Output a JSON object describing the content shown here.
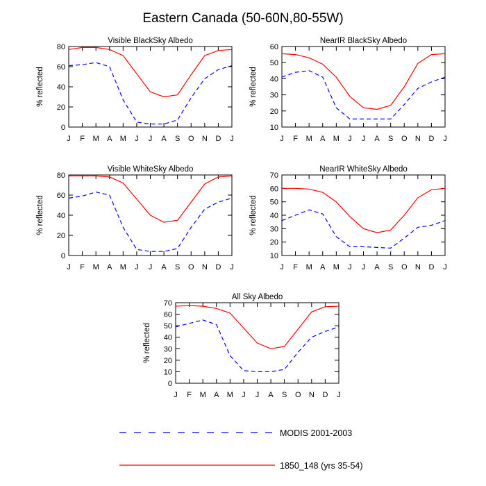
{
  "title": "Eastern Canada (50-60N,80-55W)",
  "chart_data": [
    {
      "type": "line",
      "title": "Visible BlackSky Albedo",
      "ylabel": "% reflected",
      "categories": [
        "J",
        "F",
        "M",
        "A",
        "M",
        "J",
        "J",
        "A",
        "S",
        "O",
        "N",
        "D",
        "J"
      ],
      "ylim": [
        0,
        80
      ],
      "yticks": [
        0,
        20,
        40,
        60,
        80
      ],
      "series": [
        {
          "name": "MODIS 2001-2003",
          "color": "#0000ff",
          "dash": true,
          "values": [
            61,
            62,
            64,
            60,
            27,
            5,
            3,
            3,
            7,
            29,
            48,
            57,
            61
          ]
        },
        {
          "name": "1850_148 (yrs 35-54)",
          "color": "#ff0000",
          "dash": false,
          "values": [
            77,
            79,
            79,
            77,
            71,
            53,
            35,
            30,
            32,
            52,
            71,
            76,
            77
          ]
        }
      ]
    },
    {
      "type": "line",
      "title": "NearIR BlackSky Albedo",
      "ylabel": "% reflected",
      "categories": [
        "J",
        "F",
        "M",
        "A",
        "M",
        "J",
        "J",
        "A",
        "S",
        "O",
        "N",
        "D",
        "J"
      ],
      "ylim": [
        10,
        60
      ],
      "yticks": [
        10,
        20,
        30,
        40,
        50,
        60
      ],
      "series": [
        {
          "name": "MODIS 2001-2003",
          "color": "#0000ff",
          "dash": true,
          "values": [
            41,
            44,
            45,
            41,
            22,
            15,
            15,
            15,
            15,
            24,
            34,
            38,
            41
          ]
        },
        {
          "name": "1850_148 (yrs 35-54)",
          "color": "#ff0000",
          "dash": false,
          "values": [
            55.5,
            55,
            53,
            49,
            41,
            29,
            22,
            21,
            23.5,
            35,
            49.5,
            55,
            55.5
          ]
        }
      ]
    },
    {
      "type": "line",
      "title": "Visible WhiteSky Albedo",
      "ylabel": "% reflected",
      "categories": [
        "J",
        "F",
        "M",
        "A",
        "M",
        "J",
        "J",
        "A",
        "S",
        "O",
        "N",
        "D",
        "J"
      ],
      "ylim": [
        0,
        80
      ],
      "yticks": [
        0,
        20,
        40,
        60,
        80
      ],
      "series": [
        {
          "name": "MODIS 2001-2003",
          "color": "#0000ff",
          "dash": true,
          "values": [
            57,
            59,
            63,
            60,
            28,
            6,
            4,
            4,
            7,
            28,
            46,
            53,
            57
          ]
        },
        {
          "name": "1850_148 (yrs 35-54)",
          "color": "#ff0000",
          "dash": false,
          "values": [
            79,
            79,
            79,
            78,
            72,
            56,
            40,
            33,
            35,
            53,
            71,
            78,
            79
          ]
        }
      ]
    },
    {
      "type": "line",
      "title": "NearIR WhiteSky Albedo",
      "ylabel": "% reflected",
      "categories": [
        "J",
        "F",
        "M",
        "A",
        "M",
        "J",
        "J",
        "A",
        "S",
        "O",
        "N",
        "D",
        "J"
      ],
      "ylim": [
        10,
        70
      ],
      "yticks": [
        10,
        20,
        30,
        40,
        50,
        60,
        70
      ],
      "series": [
        {
          "name": "MODIS 2001-2003",
          "color": "#0000ff",
          "dash": true,
          "values": [
            36,
            40,
            44,
            41,
            24,
            16.5,
            16.5,
            16,
            15.5,
            23,
            31,
            32.5,
            36
          ]
        },
        {
          "name": "1850_148 (yrs 35-54)",
          "color": "#ff0000",
          "dash": false,
          "values": [
            60,
            60,
            59.5,
            57,
            50,
            39,
            30,
            27,
            29,
            40,
            53,
            59,
            60
          ]
        }
      ]
    },
    {
      "type": "line",
      "title": "All Sky Albedo",
      "ylabel": "% reflected",
      "categories": [
        "J",
        "F",
        "M",
        "A",
        "M",
        "J",
        "J",
        "A",
        "S",
        "O",
        "N",
        "D",
        "J"
      ],
      "ylim": [
        0,
        70
      ],
      "yticks": [
        0,
        10,
        20,
        30,
        40,
        50,
        60,
        70
      ],
      "series": [
        {
          "name": "MODIS 2001-2003",
          "color": "#0000ff",
          "dash": true,
          "values": [
            49,
            52,
            55,
            51,
            24,
            11,
            10,
            10,
            12,
            27,
            40,
            45,
            49
          ]
        },
        {
          "name": "1850_148 (yrs 35-54)",
          "color": "#ff0000",
          "dash": false,
          "values": [
            67,
            67.5,
            67,
            65,
            61,
            48,
            35,
            30,
            32,
            47,
            62,
            66.5,
            67
          ]
        }
      ]
    }
  ],
  "legend": {
    "placement": "bottom",
    "entries": [
      {
        "label": "MODIS 2001-2003",
        "color": "#0000ff",
        "dash": true
      },
      {
        "label": "1850_148 (yrs 35-54)",
        "color": "#ff0000",
        "dash": false
      }
    ]
  }
}
